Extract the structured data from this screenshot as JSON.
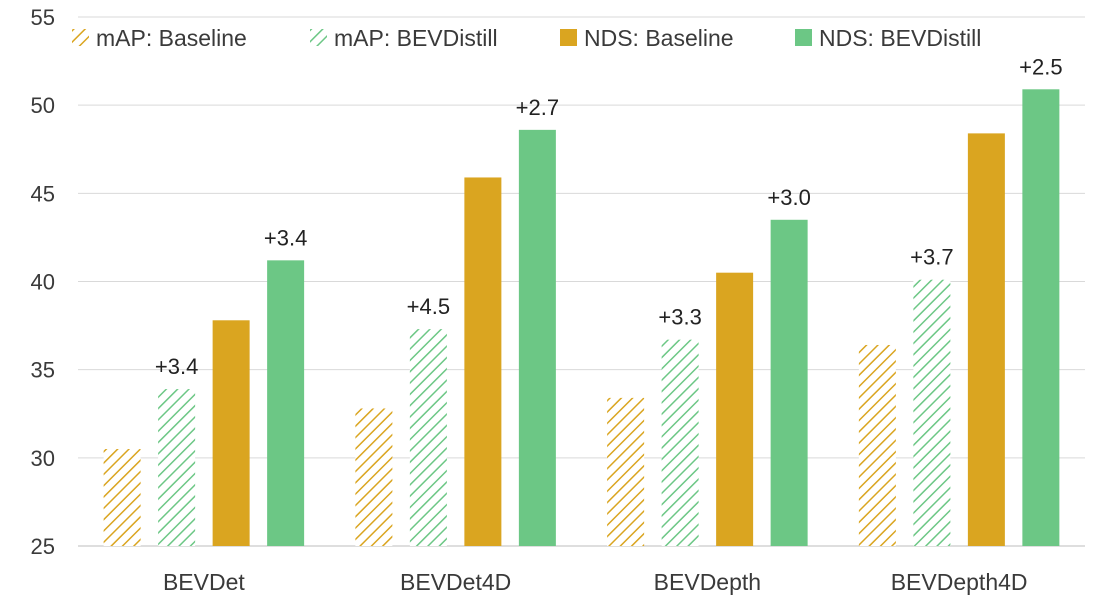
{
  "chart_data": {
    "type": "bar",
    "title": "",
    "xlabel": "",
    "ylabel": "",
    "ylim": [
      25,
      55
    ],
    "yticks": [
      25,
      30,
      35,
      40,
      45,
      50,
      55
    ],
    "grid": true,
    "legend_position": "top",
    "categories": [
      "BEVDet",
      "BEVDet4D",
      "BEVDepth",
      "BEVDepth4D"
    ],
    "series": [
      {
        "name": "mAP: Baseline",
        "values": [
          30.5,
          32.8,
          33.4,
          36.4
        ],
        "color": "#DAA520",
        "pattern": "hatch"
      },
      {
        "name": "mAP: BEVDistill",
        "values": [
          33.9,
          37.3,
          36.7,
          40.1
        ],
        "color": "#6CC785",
        "pattern": "hatch"
      },
      {
        "name": "NDS: Baseline",
        "values": [
          37.8,
          45.9,
          40.5,
          48.4
        ],
        "color": "#DAA520",
        "pattern": "solid"
      },
      {
        "name": "NDS: BEVDistill",
        "values": [
          41.2,
          48.6,
          43.5,
          50.9
        ],
        "color": "#6CC785",
        "pattern": "solid"
      }
    ],
    "annotations": [
      {
        "series": 1,
        "labels": [
          "+3.4",
          "+4.5",
          "+3.3",
          "+3.7"
        ]
      },
      {
        "series": 3,
        "labels": [
          "+3.4",
          "+2.7",
          "+3.0",
          "+2.5"
        ]
      }
    ]
  }
}
